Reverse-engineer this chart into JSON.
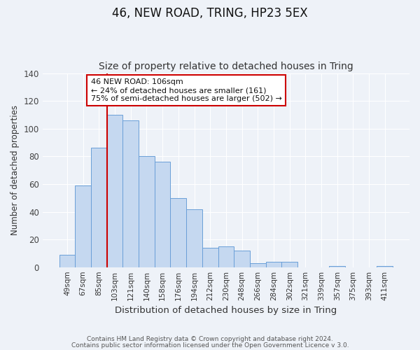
{
  "title": "46, NEW ROAD, TRING, HP23 5EX",
  "subtitle": "Size of property relative to detached houses in Tring",
  "xlabel": "Distribution of detached houses by size in Tring",
  "ylabel": "Number of detached properties",
  "bar_labels": [
    "49sqm",
    "67sqm",
    "85sqm",
    "103sqm",
    "121sqm",
    "140sqm",
    "158sqm",
    "176sqm",
    "194sqm",
    "212sqm",
    "230sqm",
    "248sqm",
    "266sqm",
    "284sqm",
    "302sqm",
    "321sqm",
    "339sqm",
    "357sqm",
    "375sqm",
    "393sqm",
    "411sqm"
  ],
  "bar_values": [
    9,
    59,
    86,
    110,
    106,
    80,
    76,
    50,
    42,
    14,
    15,
    12,
    3,
    4,
    4,
    0,
    0,
    1,
    0,
    0,
    1
  ],
  "bar_color": "#c5d8f0",
  "bar_edge_color": "#6a9fd8",
  "vline_index": 3,
  "vline_color": "#cc0000",
  "ylim": [
    0,
    140
  ],
  "yticks": [
    0,
    20,
    40,
    60,
    80,
    100,
    120,
    140
  ],
  "annotation_title": "46 NEW ROAD: 106sqm",
  "annotation_line1": "← 24% of detached houses are smaller (161)",
  "annotation_line2": "75% of semi-detached houses are larger (502) →",
  "annotation_box_color": "#ffffff",
  "annotation_box_edge": "#cc0000",
  "footer1": "Contains HM Land Registry data © Crown copyright and database right 2024.",
  "footer2": "Contains public sector information licensed under the Open Government Licence v 3.0.",
  "bg_color": "#eef2f8",
  "grid_color": "#ffffff",
  "title_fontsize": 12,
  "subtitle_fontsize": 10
}
